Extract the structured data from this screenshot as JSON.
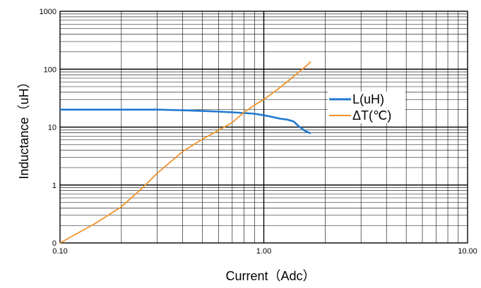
{
  "chart_data": {
    "type": "line",
    "title": "",
    "xlabel": "Current（Adc）",
    "ylabel": "Inductance（uH）",
    "x_scale": "log",
    "y_scale": "log",
    "xlim": [
      0.1,
      10
    ],
    "ylim": [
      0.1,
      1000
    ],
    "x_ticks": [
      {
        "value": 0.1,
        "label": "0.10"
      },
      {
        "value": 1,
        "label": "1.00"
      },
      {
        "value": 10,
        "label": "10.00"
      }
    ],
    "y_ticks": [
      {
        "value": 0.1,
        "label": "0"
      },
      {
        "value": 1,
        "label": "1"
      },
      {
        "value": 10,
        "label": "10"
      },
      {
        "value": 100,
        "label": "100"
      },
      {
        "value": 1000,
        "label": "1000"
      }
    ],
    "grid": true,
    "legend_position": "right",
    "series": [
      {
        "name": "L(uH)",
        "color": "#1f78d1",
        "x": [
          0.1,
          0.2,
          0.3,
          0.4,
          0.5,
          0.6,
          0.7,
          0.8,
          0.9,
          1.0,
          1.1,
          1.2,
          1.3,
          1.4,
          1.5,
          1.6,
          1.7
        ],
        "y": [
          20,
          20,
          20,
          19.5,
          19,
          18.5,
          18,
          17.5,
          17,
          16,
          15,
          14,
          13.5,
          12.5,
          10,
          8.5,
          7.8
        ]
      },
      {
        "name": "ΔT(℃)",
        "color": "#f0922a",
        "x": [
          0.1,
          0.15,
          0.2,
          0.25,
          0.3,
          0.4,
          0.5,
          0.6,
          0.7,
          0.8,
          0.9,
          1.0,
          1.2,
          1.4,
          1.6,
          1.7
        ],
        "y": [
          0.1,
          0.22,
          0.42,
          0.85,
          1.6,
          3.8,
          6.2,
          8.8,
          12,
          18,
          24,
          30,
          48,
          75,
          110,
          135
        ]
      }
    ]
  }
}
